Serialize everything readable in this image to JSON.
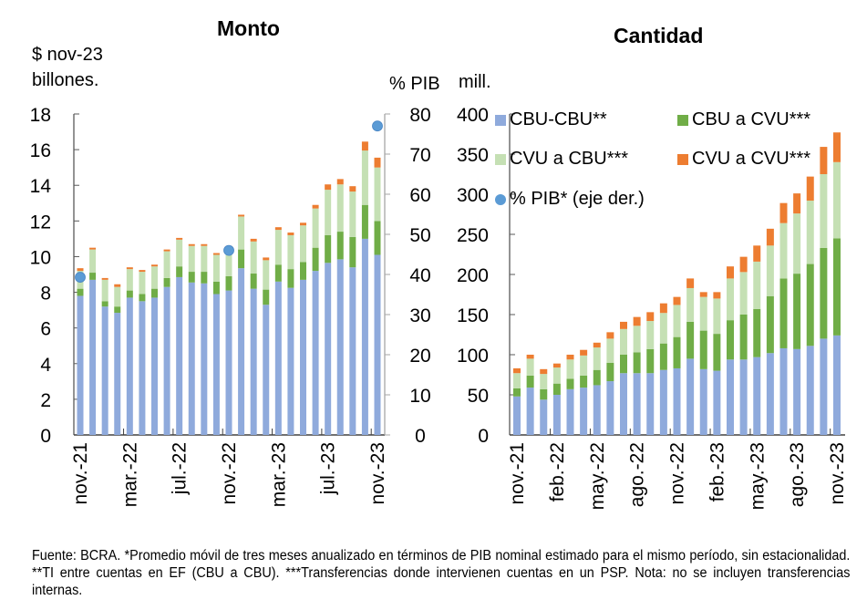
{
  "colors": {
    "cbu_cbu": "#8faadc",
    "cbu_cvu": "#70ad47",
    "cvu_cbu": "#c5e0b4",
    "cvu_cvu": "#ed7d31",
    "pib_dot": "#5b9bd5",
    "axis": "#595959"
  },
  "notes": "Fuente: BCRA. *Promedio móvil de tres meses anualizado en términos de PIB nominal estimado para el mismo período, sin estacionalidad. **TI entre cuentas en EF (CBU a CBU). ***Transferencias donde intervienen cuentas en un PSP. Nota: no se incluyen transferencias internas.",
  "chart_data": [
    {
      "type": "bar",
      "stacked": true,
      "title": "Monto",
      "ylabel": "$ nov-23 billones.",
      "y2label": "% PIB",
      "ylim": [
        0,
        18
      ],
      "y2lim": [
        0,
        80
      ],
      "yticks": [
        "0",
        "2",
        "4",
        "6",
        "8",
        "10",
        "12",
        "14",
        "16",
        "18"
      ],
      "y2ticks": [
        "0",
        "10",
        "20",
        "30",
        "40",
        "50",
        "60",
        "70",
        "80"
      ],
      "categories": [
        "nov.-21",
        "dic.-21",
        "ene.-22",
        "feb.-22",
        "mar.-22",
        "abr.-22",
        "may.-22",
        "jun.-22",
        "jul.-22",
        "ago.-22",
        "sep.-22",
        "oct.-22",
        "nov.-22",
        "dic.-22",
        "ene.-23",
        "feb.-23",
        "mar.-23",
        "abr.-23",
        "may.-23",
        "jun.-23",
        "jul.-23",
        "ago.-23",
        "sep.-23",
        "oct.-23",
        "nov.-23"
      ],
      "xtick_labels": [
        {
          "index": 0,
          "label": "nov.-21"
        },
        {
          "index": 4,
          "label": "mar.-22"
        },
        {
          "index": 8,
          "label": "jul.-22"
        },
        {
          "index": 12,
          "label": "nov.-22"
        },
        {
          "index": 16,
          "label": "mar.-23"
        },
        {
          "index": 20,
          "label": "jul.-23"
        },
        {
          "index": 24,
          "label": "nov.-23"
        }
      ],
      "series": [
        {
          "name": "CBU-CBU**",
          "color_key": "cbu_cbu",
          "values": [
            7.8,
            8.7,
            7.2,
            6.85,
            7.7,
            7.5,
            7.7,
            8.3,
            8.85,
            8.55,
            8.5,
            7.9,
            8.1,
            9.35,
            8.2,
            7.3,
            8.6,
            8.25,
            8.7,
            9.2,
            9.65,
            9.85,
            9.4,
            11.0,
            10.1
          ]
        },
        {
          "name": "CBU a CVU***",
          "color_key": "cbu_cvu",
          "values": [
            0.4,
            0.4,
            0.3,
            0.35,
            0.4,
            0.4,
            0.5,
            0.5,
            0.6,
            0.6,
            0.65,
            0.7,
            0.8,
            1.05,
            0.85,
            0.85,
            0.95,
            1.05,
            1.0,
            1.3,
            1.55,
            1.55,
            1.7,
            1.9,
            1.9
          ]
        },
        {
          "name": "CVU a CBU***",
          "color_key": "cvu_cbu",
          "values": [
            1.0,
            1.3,
            1.2,
            1.1,
            1.2,
            1.25,
            1.25,
            1.5,
            1.5,
            1.45,
            1.45,
            1.5,
            1.6,
            1.85,
            1.8,
            1.65,
            1.95,
            1.9,
            2.05,
            2.2,
            2.55,
            2.65,
            2.55,
            3.05,
            3.0
          ]
        },
        {
          "name": "CVU a CVU***",
          "color_key": "cvu_cvu",
          "values": [
            0.15,
            0.1,
            0.1,
            0.15,
            0.1,
            0.1,
            0.1,
            0.1,
            0.1,
            0.1,
            0.1,
            0.1,
            0.1,
            0.1,
            0.15,
            0.15,
            0.15,
            0.15,
            0.15,
            0.2,
            0.3,
            0.3,
            0.3,
            0.5,
            0.55
          ]
        }
      ],
      "scatter_series": {
        "name": "% PIB* (eje der.)",
        "axis": "right",
        "points": [
          {
            "index": 0,
            "value": 39.3
          },
          {
            "index": 12,
            "value": 46.0
          },
          {
            "index": 24,
            "value": 77.0
          }
        ]
      }
    },
    {
      "type": "bar",
      "stacked": true,
      "title": "Cantidad",
      "ylabel": "mill.",
      "ylim": [
        0,
        400
      ],
      "yticks": [
        "0",
        "50",
        "100",
        "150",
        "200",
        "250",
        "300",
        "350",
        "400"
      ],
      "categories": [
        "nov.-21",
        "dic.-21",
        "ene.-22",
        "feb.-22",
        "mar.-22",
        "abr.-22",
        "may.-22",
        "jun.-22",
        "jul.-22",
        "ago.-22",
        "sep.-22",
        "oct.-22",
        "nov.-22",
        "dic.-22",
        "ene.-23",
        "feb.-23",
        "mar.-23",
        "abr.-23",
        "may.-23",
        "jun.-23",
        "jul.-23",
        "ago.-23",
        "sep.-23",
        "oct.-23",
        "nov.-23"
      ],
      "xtick_labels": [
        {
          "index": 0,
          "label": "nov.-21"
        },
        {
          "index": 3,
          "label": "feb.-22"
        },
        {
          "index": 6,
          "label": "may.-22"
        },
        {
          "index": 9,
          "label": "ago.-22"
        },
        {
          "index": 12,
          "label": "nov.-22"
        },
        {
          "index": 15,
          "label": "feb.-23"
        },
        {
          "index": 18,
          "label": "may.-23"
        },
        {
          "index": 21,
          "label": "ago.-23"
        },
        {
          "index": 24,
          "label": "nov.-23"
        }
      ],
      "series": [
        {
          "name": "CBU-CBU**",
          "color_key": "cbu_cbu",
          "values": [
            48,
            59,
            44,
            50,
            57,
            59,
            62,
            67,
            77,
            77,
            77,
            81,
            83,
            95,
            82,
            80,
            94,
            94,
            97,
            102,
            108,
            107,
            111,
            120,
            124
          ]
        },
        {
          "name": "CBU a CVU***",
          "color_key": "cbu_cvu",
          "values": [
            10,
            15,
            13,
            14,
            13,
            15,
            19,
            23,
            23,
            26,
            30,
            33,
            39,
            46,
            48,
            46,
            49,
            56,
            60,
            71,
            87,
            94,
            102,
            113,
            121
          ]
        },
        {
          "name": "CVU a CBU***",
          "color_key": "cvu_cbu",
          "values": [
            19,
            21,
            19,
            20,
            24,
            25,
            28,
            30,
            32,
            33,
            35,
            38,
            40,
            42,
            42,
            44,
            52,
            53,
            59,
            63,
            69,
            75,
            79,
            92,
            95
          ]
        },
        {
          "name": "CVU a CVU***",
          "color_key": "cvu_cvu",
          "values": [
            6,
            5,
            6,
            5,
            6,
            7,
            6,
            8,
            9,
            11,
            11,
            12,
            10,
            12,
            6,
            8,
            15,
            19,
            20,
            21,
            25,
            25,
            30,
            34,
            37
          ]
        }
      ],
      "legend": [
        {
          "label": "CBU-CBU**",
          "color_key": "cbu_cbu",
          "shape": "square"
        },
        {
          "label": "CBU a CVU***",
          "color_key": "cbu_cvu",
          "shape": "square"
        },
        {
          "label": "CVU a CBU***",
          "color_key": "cvu_cbu",
          "shape": "square"
        },
        {
          "label": "CVU a CVU***",
          "color_key": "cvu_cvu",
          "shape": "square"
        },
        {
          "label": "% PIB* (eje der.)",
          "color_key": "pib_dot",
          "shape": "circle"
        }
      ]
    }
  ]
}
